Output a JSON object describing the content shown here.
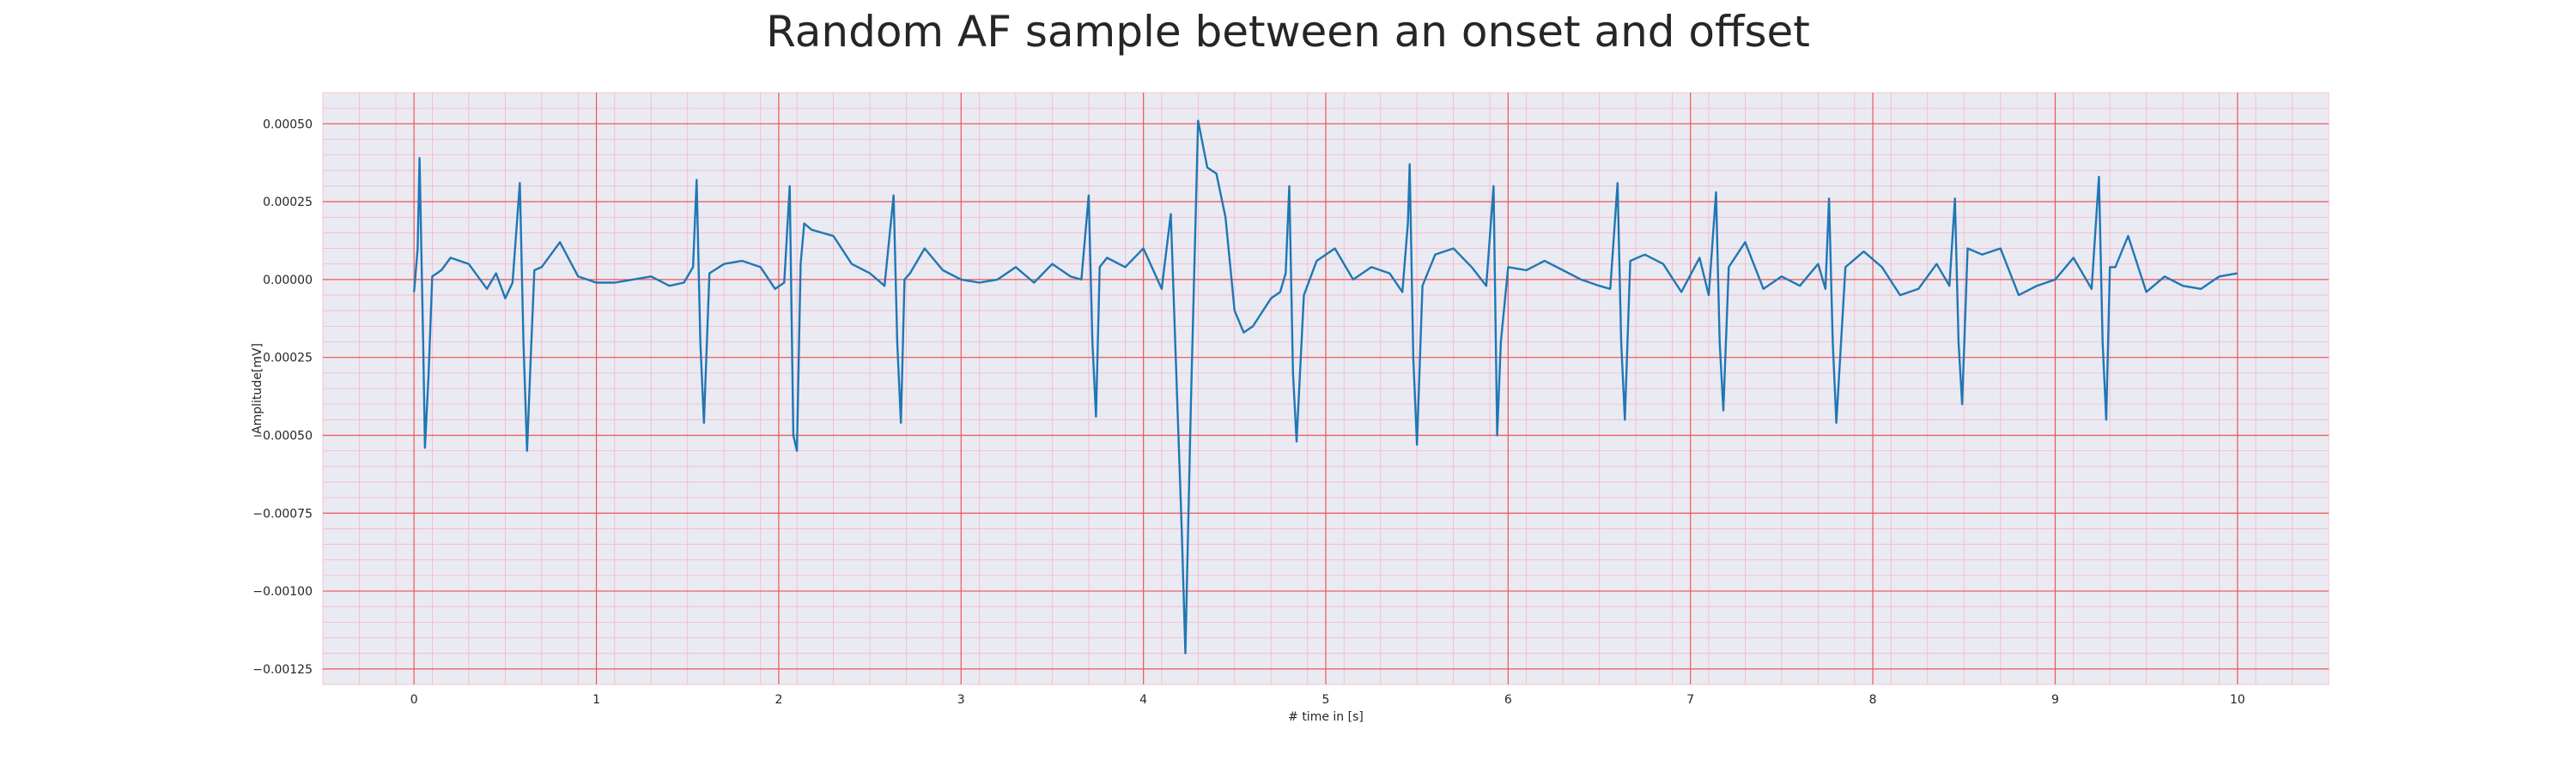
{
  "chart_data": {
    "type": "line",
    "title": "Random AF sample between an onset and offset",
    "xlabel": "# time in [s]",
    "ylabel": "Amplitude[mV]",
    "xlim": [
      -0.5,
      10.5
    ],
    "ylim": [
      -0.0013,
      0.0006
    ],
    "x_ticks": [
      0,
      1,
      2,
      3,
      4,
      5,
      6,
      7,
      8,
      9,
      10
    ],
    "x_tick_labels": [
      "0",
      "1",
      "2",
      "3",
      "4",
      "5",
      "6",
      "7",
      "8",
      "9",
      "10"
    ],
    "y_ticks": [
      0.0005,
      0.00025,
      0,
      -0.00025,
      -0.0005,
      -0.00075,
      -0.001,
      -0.00125
    ],
    "y_tick_labels": [
      "0.00050",
      "0.00025",
      "0.00000",
      "−0.00025",
      "−0.00050",
      "−0.00075",
      "−0.00100",
      "−0.00125"
    ],
    "grid": true,
    "legend": "none",
    "beat_times": [
      0.03,
      0.6,
      1.55,
      2.07,
      2.65,
      3.72,
      4.22,
      4.8,
      5.46,
      5.92,
      6.6,
      7.14,
      7.76,
      8.45,
      9.26
    ],
    "series": [
      {
        "color": "#1f77b4",
        "x": [
          0.0,
          0.02,
          0.03,
          0.05,
          0.06,
          0.08,
          0.1,
          0.15,
          0.2,
          0.3,
          0.4,
          0.45,
          0.5,
          0.54,
          0.58,
          0.6,
          0.62,
          0.64,
          0.66,
          0.7,
          0.8,
          0.9,
          1.0,
          1.1,
          1.2,
          1.3,
          1.4,
          1.48,
          1.53,
          1.55,
          1.57,
          1.59,
          1.62,
          1.7,
          1.8,
          1.9,
          1.98,
          2.03,
          2.06,
          2.08,
          2.1,
          2.12,
          2.14,
          2.18,
          2.3,
          2.4,
          2.5,
          2.58,
          2.63,
          2.65,
          2.67,
          2.69,
          2.72,
          2.8,
          2.9,
          3.0,
          3.1,
          3.2,
          3.3,
          3.4,
          3.5,
          3.6,
          3.66,
          3.7,
          3.72,
          3.74,
          3.76,
          3.8,
          3.9,
          4.0,
          4.1,
          4.15,
          4.18,
          4.21,
          4.23,
          4.26,
          4.3,
          4.35,
          4.4,
          4.45,
          4.5,
          4.55,
          4.6,
          4.7,
          4.75,
          4.78,
          4.8,
          4.82,
          4.84,
          4.88,
          4.95,
          5.05,
          5.15,
          5.25,
          5.35,
          5.42,
          5.45,
          5.46,
          5.48,
          5.5,
          5.53,
          5.6,
          5.7,
          5.8,
          5.88,
          5.92,
          5.94,
          5.96,
          6.0,
          6.1,
          6.2,
          6.3,
          6.4,
          6.5,
          6.56,
          6.6,
          6.62,
          6.64,
          6.67,
          6.75,
          6.85,
          6.95,
          7.05,
          7.1,
          7.14,
          7.16,
          7.18,
          7.21,
          7.3,
          7.4,
          7.5,
          7.6,
          7.7,
          7.74,
          7.76,
          7.78,
          7.8,
          7.85,
          7.95,
          8.05,
          8.15,
          8.25,
          8.35,
          8.42,
          8.45,
          8.47,
          8.49,
          8.52,
          8.6,
          8.7,
          8.8,
          8.9,
          9.0,
          9.1,
          9.2,
          9.24,
          9.26,
          9.28,
          9.3,
          9.33,
          9.4,
          9.5,
          9.6,
          9.7,
          9.8,
          9.9,
          10.0
        ],
        "y": [
          -4e-05,
          0.0001,
          0.00039,
          -0.0002,
          -0.00054,
          -0.0003,
          1e-05,
          3e-05,
          7e-05,
          5e-05,
          -3e-05,
          2e-05,
          -6e-05,
          -1e-05,
          0.00031,
          -0.0002,
          -0.00055,
          -0.00025,
          3e-05,
          4e-05,
          0.00012,
          1e-05,
          -1e-05,
          -1e-05,
          0.0,
          1e-05,
          -2e-05,
          -1e-05,
          4e-05,
          0.00032,
          -0.0002,
          -0.00046,
          2e-05,
          5e-05,
          6e-05,
          4e-05,
          -3e-05,
          -1e-05,
          0.0003,
          -0.0005,
          -0.00055,
          5e-05,
          0.00018,
          0.00016,
          0.00014,
          5e-05,
          2e-05,
          -2e-05,
          0.00027,
          -0.0002,
          -0.00046,
          0.0,
          2e-05,
          0.0001,
          3e-05,
          0.0,
          -1e-05,
          0.0,
          4e-05,
          -1e-05,
          5e-05,
          1e-05,
          0.0,
          0.00027,
          -0.0002,
          -0.00044,
          4e-05,
          7e-05,
          4e-05,
          0.0001,
          -3e-05,
          0.00021,
          -0.0003,
          -0.0008,
          -0.0012,
          -0.0004,
          0.00051,
          0.00036,
          0.00034,
          0.0002,
          -0.0001,
          -0.00017,
          -0.00015,
          -6e-05,
          -4e-05,
          2e-05,
          0.0003,
          -0.0003,
          -0.00052,
          -5e-05,
          6e-05,
          0.0001,
          0.0,
          4e-05,
          2e-05,
          -4e-05,
          0.00018,
          0.00037,
          -0.00025,
          -0.00053,
          -2e-05,
          8e-05,
          0.0001,
          4e-05,
          -2e-05,
          0.0003,
          -0.0005,
          -0.0002,
          4e-05,
          3e-05,
          6e-05,
          3e-05,
          0.0,
          -2e-05,
          -3e-05,
          0.00031,
          -0.0002,
          -0.00045,
          6e-05,
          8e-05,
          5e-05,
          -4e-05,
          7e-05,
          -5e-05,
          0.00028,
          -0.0002,
          -0.00042,
          4e-05,
          0.00012,
          -3e-05,
          1e-05,
          -2e-05,
          5e-05,
          -3e-05,
          0.00026,
          -0.0002,
          -0.00046,
          4e-05,
          9e-05,
          4e-05,
          -5e-05,
          -3e-05,
          5e-05,
          -2e-05,
          0.00026,
          -0.0002,
          -0.0004,
          0.0001,
          8e-05,
          0.0001,
          -5e-05,
          -2e-05,
          0.0,
          7e-05,
          -3e-05,
          0.00033,
          -0.0002,
          -0.00045,
          4e-05,
          4e-05,
          0.00014,
          -4e-05,
          1e-05,
          -2e-05,
          -3e-05,
          1e-05,
          2e-05
        ]
      }
    ]
  }
}
